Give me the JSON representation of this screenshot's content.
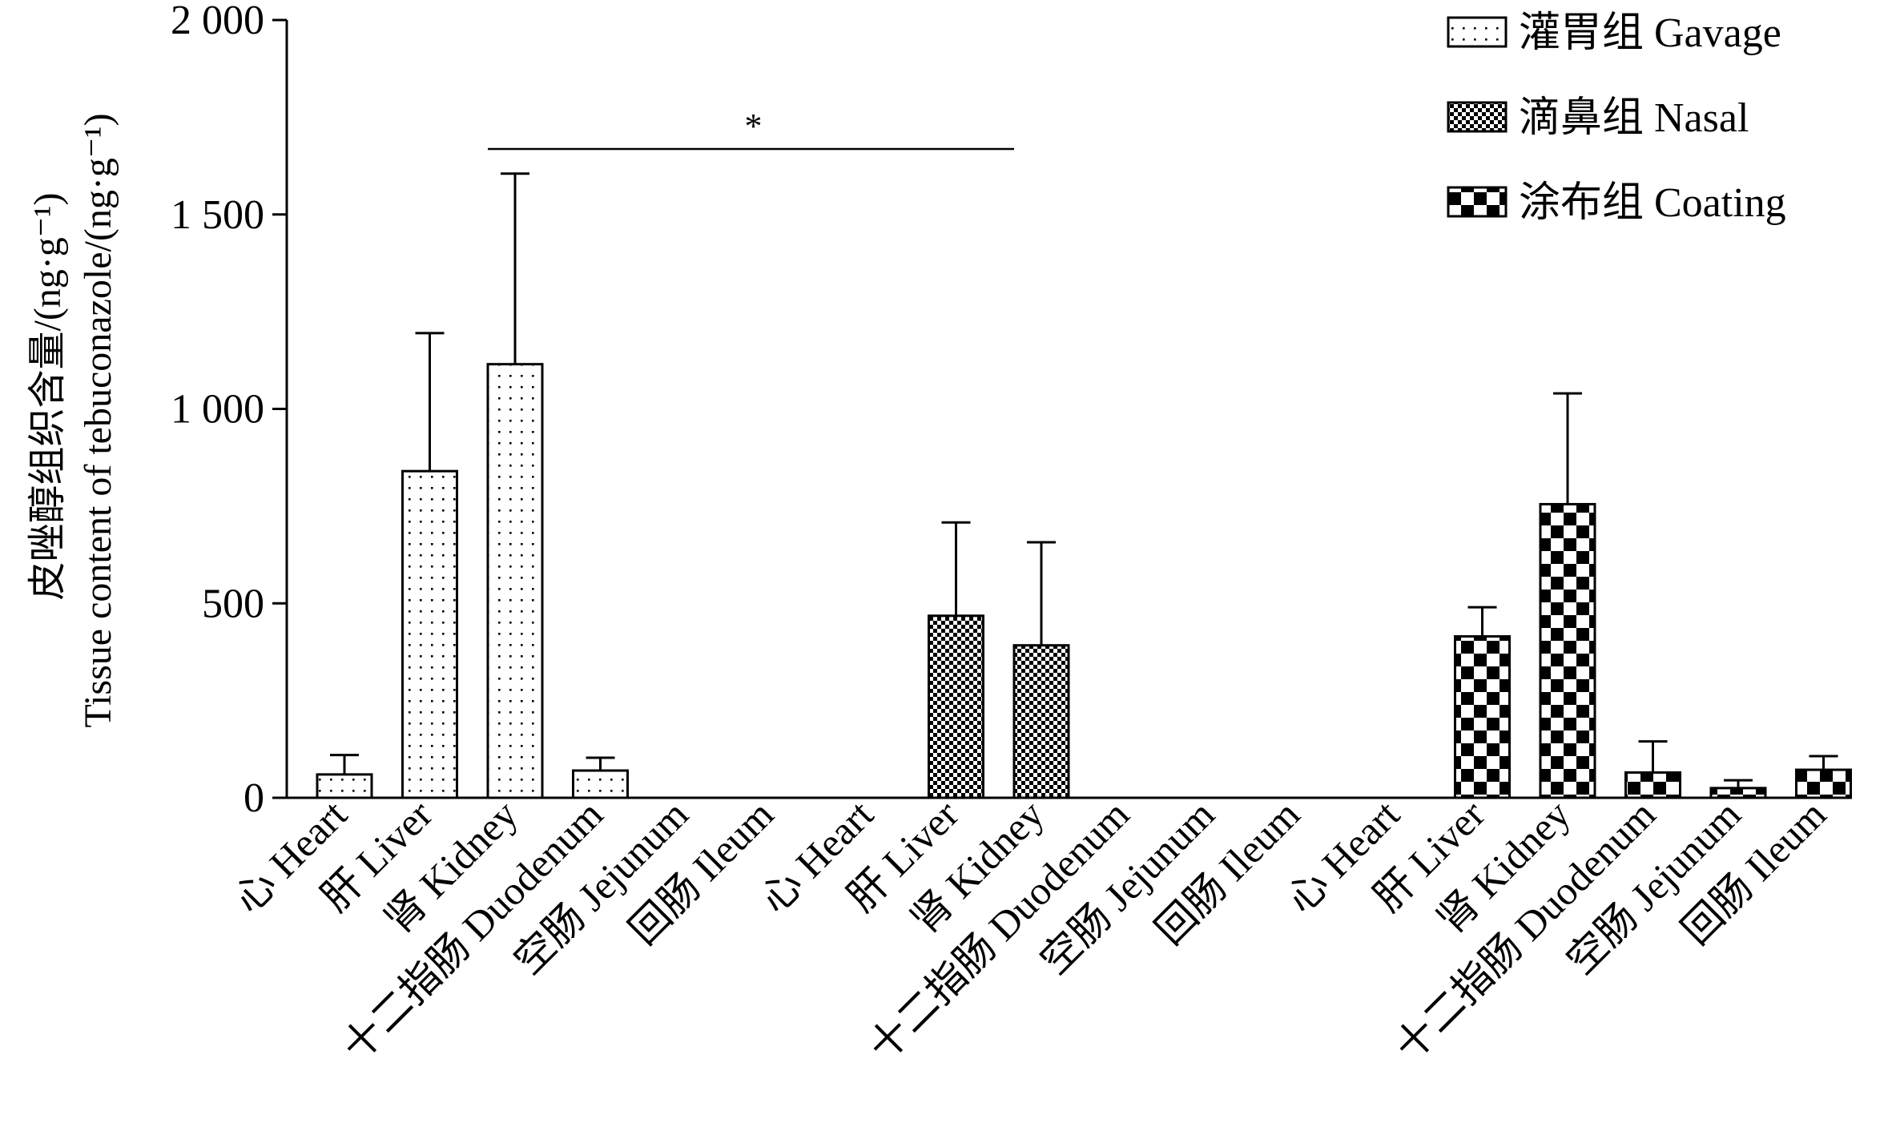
{
  "chart_data": {
    "type": "bar",
    "ylabel_line1": "皮唑醇组织含量/(ng·g⁻¹)",
    "ylabel_line2": "Tissue content of tebuconazole/(ng·g⁻¹)",
    "ylim": [
      0,
      2000
    ],
    "yticks": [
      0,
      500,
      1000,
      1500,
      2000
    ],
    "ytick_labels": [
      "0",
      "500",
      "1 000",
      "1 500",
      "2 000"
    ],
    "grid": false,
    "legend_position": "top-right",
    "categories": [
      "心 Heart",
      "肝 Liver",
      "肾 Kidney",
      "十二指肠 Duodenum",
      "空肠 Jejunum",
      "回肠 Ileum"
    ],
    "series": [
      {
        "name": "灌胃组 Gavage",
        "pattern": "dots",
        "values": [
          60,
          840,
          1115,
          70,
          0,
          0
        ],
        "errors": [
          50,
          355,
          490,
          33,
          0,
          0
        ]
      },
      {
        "name": "滴鼻组 Nasal",
        "pattern": "fine-checker",
        "values": [
          0,
          468,
          392,
          0,
          0,
          0
        ],
        "errors": [
          0,
          240,
          265,
          0,
          0,
          0
        ]
      },
      {
        "name": "涂布组 Coating",
        "pattern": "coarse-checker",
        "values": [
          0,
          415,
          755,
          65,
          25,
          72
        ],
        "errors": [
          0,
          75,
          285,
          80,
          20,
          35
        ]
      }
    ],
    "annotations": [
      {
        "text": "*",
        "from_series": 0,
        "from_category": 2,
        "to_series": 1,
        "to_category": 2
      }
    ]
  }
}
